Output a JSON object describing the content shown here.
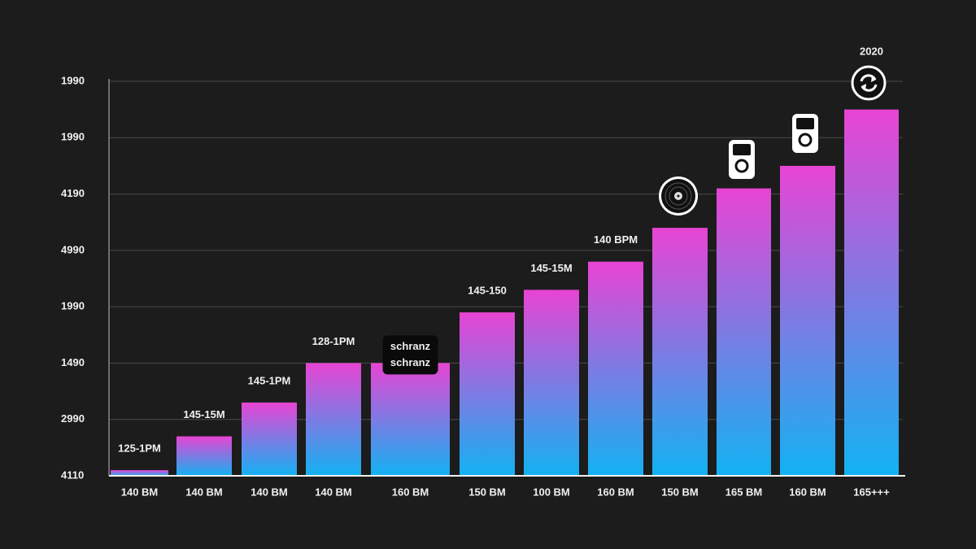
{
  "chart_data": {
    "type": "bar",
    "categories": [
      "140 BM",
      "140 BM",
      "140 BM",
      "140 BM",
      "160 BM",
      "150 BM",
      "100 BM",
      "160 BM",
      "150 BM",
      "165 BM",
      "160 BM",
      "165+++"
    ],
    "values": [
      0.1,
      0.7,
      1.3,
      2.0,
      2.0,
      2.9,
      3.3,
      3.8,
      4.4,
      5.1,
      5.5,
      6.5
    ],
    "annotations": [
      [
        "125-1PM"
      ],
      [
        "145-15M"
      ],
      [
        "145-1PM"
      ],
      [
        "128-1PM"
      ],
      [
        "schranz",
        "schranz"
      ],
      [
        "145-150"
      ],
      [
        "145-15M"
      ],
      [
        "140 BPM"
      ],
      [],
      [],
      [],
      [
        "2020"
      ]
    ],
    "colors": [
      "#e844d4",
      "#12b2f2"
    ],
    "ylim": [
      0,
      7
    ],
    "yticks": [
      {
        "value": 0,
        "label": "4110"
      },
      {
        "value": 1,
        "label": "2990"
      },
      {
        "value": 2,
        "label": "1490"
      },
      {
        "value": 3,
        "label": "1990"
      },
      {
        "value": 4,
        "label": "4990"
      },
      {
        "value": 5,
        "label": "4190"
      },
      {
        "value": 6,
        "label": "1990"
      },
      {
        "value": 7,
        "label": "1990"
      }
    ],
    "grid": true
  }
}
